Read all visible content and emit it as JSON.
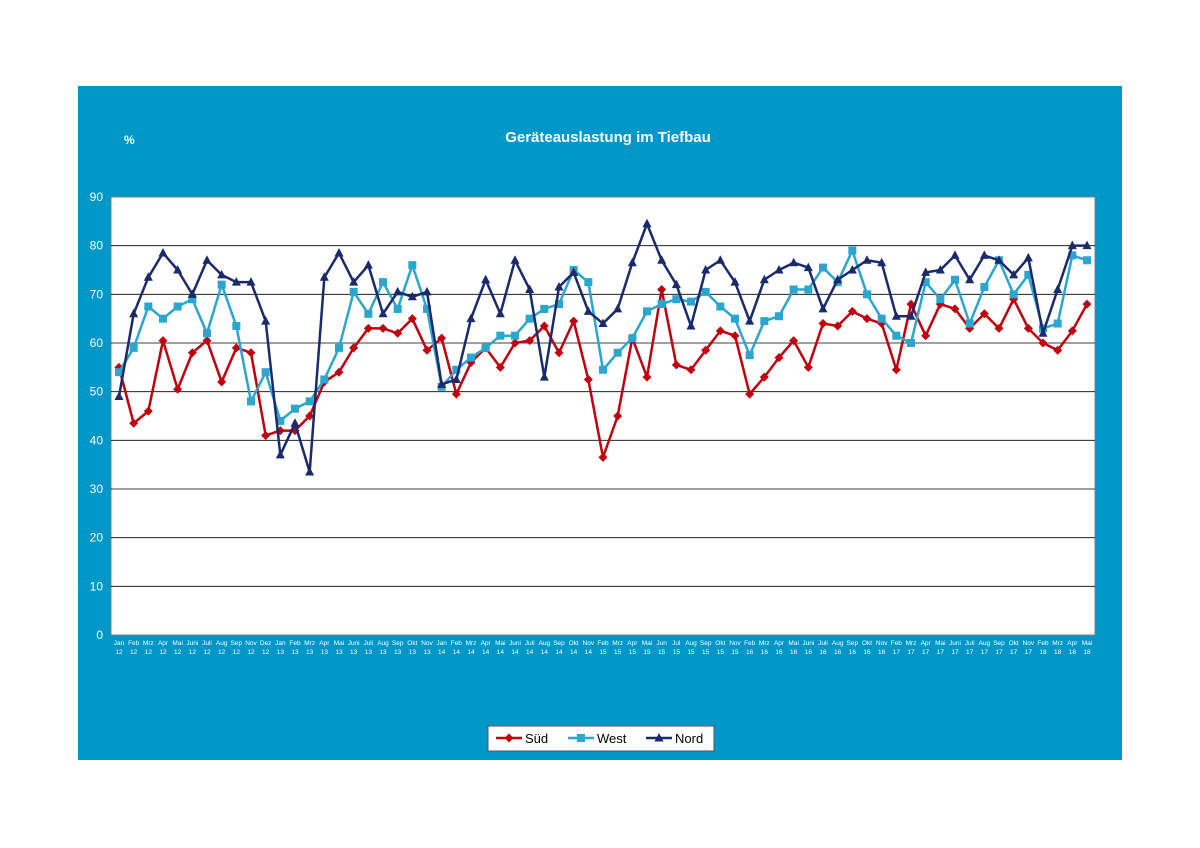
{
  "chart_data": {
    "type": "line",
    "title": "Geräteauslastung im Tiefbau",
    "ylabel": "%",
    "ylim": [
      0,
      90
    ],
    "yticks": [
      0,
      10,
      20,
      30,
      40,
      50,
      60,
      70,
      80,
      90
    ],
    "grid": true,
    "legend_position": "bottom",
    "categories": [
      [
        "Jan",
        "12"
      ],
      [
        "Feb",
        "12"
      ],
      [
        "Mrz",
        "12"
      ],
      [
        "Apr",
        "12"
      ],
      [
        "Mai",
        "12"
      ],
      [
        "Juni",
        "12"
      ],
      [
        "Juli",
        "12"
      ],
      [
        "Aug",
        "12"
      ],
      [
        "Sep",
        "12"
      ],
      [
        "Nov",
        "12"
      ],
      [
        "Dez",
        "12"
      ],
      [
        "Jan",
        "13"
      ],
      [
        "Feb",
        "13"
      ],
      [
        "Mrz",
        "13"
      ],
      [
        "Apr",
        "13"
      ],
      [
        "Mai",
        "13"
      ],
      [
        "Juni",
        "13"
      ],
      [
        "Juli",
        "13"
      ],
      [
        "Aug",
        "13"
      ],
      [
        "Sep",
        "13"
      ],
      [
        "Okt",
        "13"
      ],
      [
        "Nov",
        "13"
      ],
      [
        "Jan",
        "14"
      ],
      [
        "Feb",
        "14"
      ],
      [
        "Mrz",
        "14"
      ],
      [
        "Apr",
        "14"
      ],
      [
        "Mai",
        "14"
      ],
      [
        "Juni",
        "14"
      ],
      [
        "Juli",
        "14"
      ],
      [
        "Aug",
        "14"
      ],
      [
        "Sep",
        "14"
      ],
      [
        "Okt",
        "14"
      ],
      [
        "Nov",
        "14"
      ],
      [
        "Feb",
        "15"
      ],
      [
        "Mrz",
        "15"
      ],
      [
        "Apr",
        "15"
      ],
      [
        "Mai",
        "15"
      ],
      [
        "Jun",
        "15"
      ],
      [
        "Jul",
        "15"
      ],
      [
        "Aug",
        "15"
      ],
      [
        "Sep",
        "15"
      ],
      [
        "Okt",
        "15"
      ],
      [
        "Nov",
        "15"
      ],
      [
        "Feb",
        "16"
      ],
      [
        "Mrz",
        "16"
      ],
      [
        "Apr",
        "16"
      ],
      [
        "Mai",
        "16"
      ],
      [
        "Juni",
        "16"
      ],
      [
        "Juli",
        "16"
      ],
      [
        "Aug",
        "16"
      ],
      [
        "Sep",
        "16"
      ],
      [
        "Okt",
        "16"
      ],
      [
        "Nov",
        "16"
      ],
      [
        "Feb",
        "17"
      ],
      [
        "Mrz",
        "17"
      ],
      [
        "Apr",
        "17"
      ],
      [
        "Mai",
        "17"
      ],
      [
        "Juni",
        "17"
      ],
      [
        "Juli",
        "17"
      ],
      [
        "Aug",
        "17"
      ],
      [
        "Sep",
        "17"
      ],
      [
        "Okt",
        "17"
      ],
      [
        "Nov",
        "17"
      ],
      [
        "Feb",
        "18"
      ],
      [
        "Mrz",
        "18"
      ],
      [
        "Apr",
        "18"
      ],
      [
        "Mai",
        "18"
      ]
    ],
    "series": [
      {
        "name": "Süd",
        "color": "#c0000f",
        "marker": "diamond",
        "values": [
          55,
          43.5,
          46,
          60.5,
          50.5,
          58,
          60.5,
          52,
          59,
          58,
          41,
          42,
          42,
          45,
          52,
          54,
          59,
          63,
          63,
          62,
          65,
          58.5,
          61,
          49.5,
          56,
          59,
          55,
          60,
          60.5,
          63.5,
          58,
          64.5,
          52.5,
          36.5,
          45,
          61,
          53,
          71,
          55.5,
          54.5,
          58.5,
          62.5,
          61.5,
          49.5,
          53,
          57,
          60.5,
          55,
          64,
          63.5,
          66.5,
          65,
          64,
          54.5,
          68,
          61.5,
          68,
          67,
          63,
          66,
          63,
          69,
          63,
          60,
          58.5,
          62.5,
          68
        ]
      },
      {
        "name": "West",
        "color": "#2aa6cf",
        "marker": "square",
        "values": [
          54,
          59,
          67.5,
          65,
          67.5,
          69,
          62,
          72,
          63.5,
          48,
          54,
          44,
          46.5,
          48,
          52.5,
          59,
          70.5,
          66,
          72.5,
          67,
          76,
          67,
          51,
          54.5,
          57,
          59,
          61.5,
          61.5,
          65,
          67,
          68,
          75,
          72.5,
          54.5,
          58,
          61,
          66.5,
          68,
          69,
          68.5,
          70.5,
          67.5,
          65,
          57.5,
          64.5,
          65.5,
          71,
          71,
          75.5,
          72.5,
          79,
          70,
          65,
          61.5,
          60,
          72.5,
          69,
          73,
          64,
          71.5,
          77,
          70,
          74,
          63,
          64,
          78,
          77
        ]
      },
      {
        "name": "Nord",
        "color": "#1a2a6c",
        "marker": "triangle",
        "values": [
          49,
          66,
          73.5,
          78.5,
          75,
          70,
          77,
          74,
          72.5,
          72.5,
          64.5,
          37,
          43.5,
          33.5,
          73.5,
          78.5,
          72.5,
          76,
          66,
          70.5,
          69.5,
          70.5,
          51.5,
          52.5,
          65,
          73,
          66,
          77,
          71,
          53,
          71.5,
          74.5,
          66.5,
          64,
          67,
          76.5,
          84.5,
          77,
          72,
          63.5,
          75,
          77,
          72.5,
          64.5,
          73,
          75,
          76.5,
          75.5,
          67,
          73,
          75,
          77,
          76.5,
          65.5,
          65.5,
          74.5,
          75,
          78,
          73,
          78,
          77,
          74,
          77.5,
          62,
          71,
          80,
          80
        ]
      }
    ]
  }
}
